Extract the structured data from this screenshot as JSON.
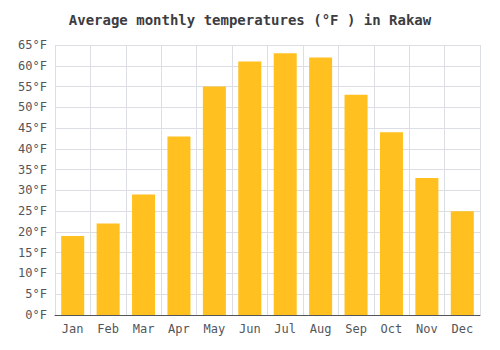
{
  "chart_data": {
    "type": "bar",
    "title": "Average monthly temperatures (°F ) in Rakaw",
    "categories": [
      "Jan",
      "Feb",
      "Mar",
      "Apr",
      "May",
      "Jun",
      "Jul",
      "Aug",
      "Sep",
      "Oct",
      "Nov",
      "Dec"
    ],
    "values": [
      19,
      22,
      29,
      43,
      55,
      61,
      63,
      62,
      53,
      44,
      33,
      25
    ],
    "color": "#FFC020",
    "ylim": [
      0,
      65
    ],
    "yticks": [
      {
        "value": 0,
        "label": "0°F"
      },
      {
        "value": 5,
        "label": "5°F"
      },
      {
        "value": 10,
        "label": "10°F"
      },
      {
        "value": 15,
        "label": "15°F"
      },
      {
        "value": 20,
        "label": "20°F"
      },
      {
        "value": 25,
        "label": "25°F"
      },
      {
        "value": 30,
        "label": "30°F"
      },
      {
        "value": 35,
        "label": "35°F"
      },
      {
        "value": 40,
        "label": "40°F"
      },
      {
        "value": 45,
        "label": "45°F"
      },
      {
        "value": 50,
        "label": "50°F"
      },
      {
        "value": 55,
        "label": "55°F"
      },
      {
        "value": 60,
        "label": "60°F"
      },
      {
        "value": 65,
        "label": "65°F"
      }
    ],
    "grid": true
  }
}
